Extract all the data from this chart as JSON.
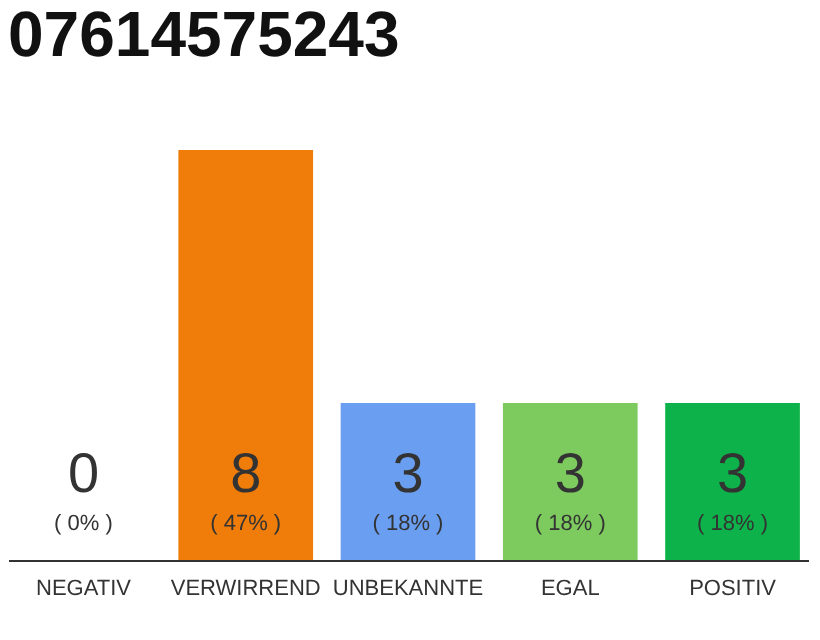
{
  "chart_data": {
    "type": "bar",
    "title": "07614575243",
    "categories": [
      "NEGATIV",
      "VERWIRREND",
      "UNBEKANNTE",
      "EGAL",
      "POSITIV"
    ],
    "values": [
      0,
      47,
      18,
      18,
      18
    ],
    "colors": [
      "#cccccc",
      "#f07d0a",
      "#6a9ef0",
      "#7dcb5f",
      "#0db34a"
    ],
    "value_labels": [
      "( 0% )",
      "( 47% )",
      "( 18% )",
      "( 18% )",
      "( 18% )"
    ],
    "annotations": [
      "0",
      "8",
      "3",
      "3",
      "3"
    ],
    "grid": false
  }
}
